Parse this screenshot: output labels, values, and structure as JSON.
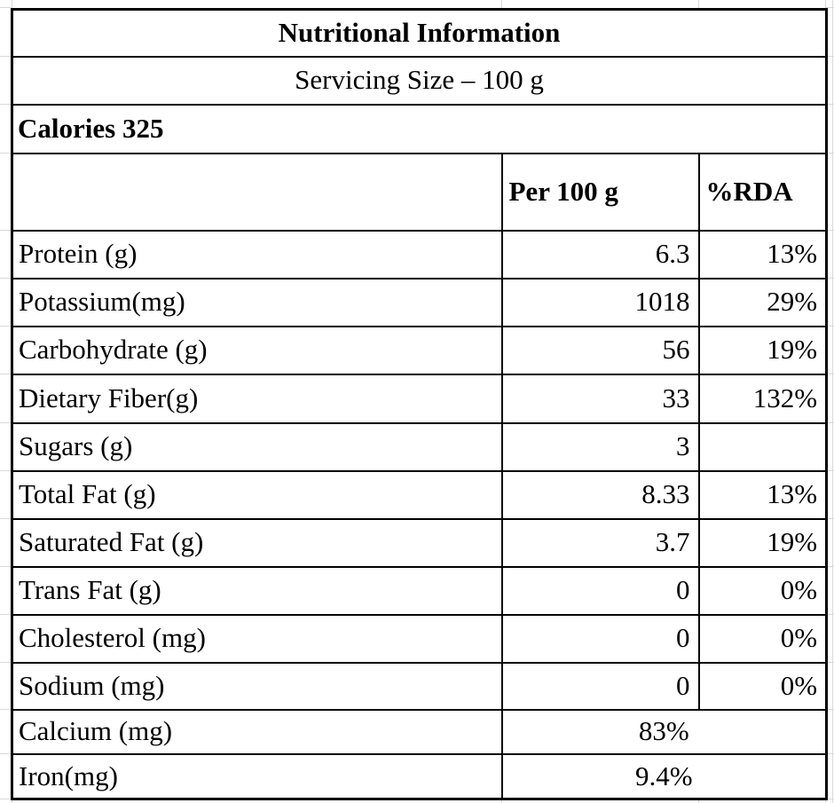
{
  "table": {
    "title": "Nutritional Information",
    "serving_size": "Servicing Size – 100 g",
    "calories": "Calories 325",
    "columns": {
      "per": "Per 100 g",
      "rda": "%RDA"
    },
    "rows": [
      {
        "label": "Protein (g)",
        "value": "6.3",
        "rda": "13%"
      },
      {
        "label": "Potassium(mg)",
        "value": "1018",
        "rda": "29%"
      },
      {
        "label": "Carbohydrate (g)",
        "value": "56",
        "rda": "19%"
      },
      {
        "label": "Dietary Fiber(g)",
        "value": "33",
        "rda": "132%"
      },
      {
        "label": "Sugars (g)",
        "value": "3",
        "rda": ""
      },
      {
        "label": "Total Fat (g)",
        "value": "8.33",
        "rda": "13%"
      },
      {
        "label": "Saturated Fat (g)",
        "value": "3.7",
        "rda": "19%"
      },
      {
        "label": "Trans Fat (g)",
        "value": "0",
        "rda": "0%"
      },
      {
        "label": "Cholesterol (mg)",
        "value": "0",
        "rda": "0%"
      },
      {
        "label": "Sodium (mg)",
        "value": "0",
        "rda": "0%"
      }
    ],
    "merged_rows": [
      {
        "label": "Calcium (mg)",
        "value": "83%"
      },
      {
        "label": "Iron(mg)",
        "value": "9.4%"
      }
    ]
  },
  "colors": {
    "border": "#000000",
    "sheet_gridline": "#d9d9d9",
    "text": "#000000",
    "background": "#ffffff"
  }
}
